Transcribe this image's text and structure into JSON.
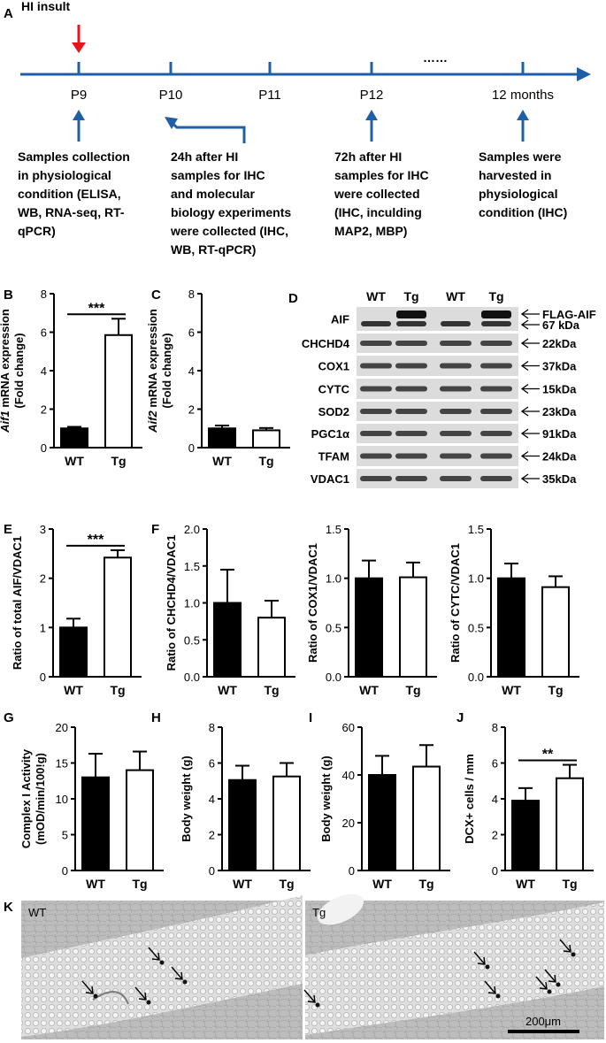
{
  "panel_labels": [
    "A",
    "B",
    "C",
    "D",
    "E",
    "F",
    "G",
    "H",
    "I",
    "J",
    "K"
  ],
  "timeline": {
    "insult_label": "HI insult",
    "ellipsis": "……",
    "ticks": [
      "P9",
      "P10",
      "P11",
      "P12",
      "12 months"
    ],
    "notes": [
      [
        "Samples collection",
        "in physiological",
        "condition (ELISA,",
        "WB, RNA-seq, RT-",
        "qPCR)"
      ],
      [
        "24h after HI",
        "samples for IHC",
        "and molecular",
        "biology experiments",
        "were collected (IHC,",
        "WB, RT-qPCR)"
      ],
      [
        "72h after HI",
        "samples for IHC",
        "were collected",
        "(IHC, inculding",
        "MAP2, MBP)"
      ],
      [
        "Samples were",
        "harvested in",
        "physiological",
        "condition (IHC)"
      ]
    ],
    "colors": {
      "line": "#1f5fa8",
      "insult_arrow": "#e8141b"
    }
  },
  "western_blot": {
    "lanes": [
      "WT",
      "Tg",
      "WT",
      "Tg"
    ],
    "rows": [
      {
        "name": "AIF",
        "markers": [
          "FLAG-AIF",
          "67 kDa"
        ]
      },
      {
        "name": "CHCHD4",
        "markers": [
          "22kDa"
        ]
      },
      {
        "name": "COX1",
        "markers": [
          "37kDa"
        ]
      },
      {
        "name": "CYTC",
        "markers": [
          "15kDa"
        ]
      },
      {
        "name": "SOD2",
        "markers": [
          "23kDa"
        ]
      },
      {
        "name": "PGC1α",
        "markers": [
          "91kDa"
        ]
      },
      {
        "name": "TFAM",
        "markers": [
          "24kDa"
        ]
      },
      {
        "name": "VDAC1",
        "markers": [
          "35kDa"
        ]
      }
    ]
  },
  "chart_data": [
    {
      "panel": "B",
      "type": "bar",
      "categories": [
        "WT",
        "Tg"
      ],
      "values": [
        1.0,
        5.85
      ],
      "errors": [
        0.08,
        0.85
      ],
      "ylabel_italic": "Aif1",
      "ylabel": " mRNA expression",
      "ylabel2": "(Fold change)",
      "ylim": [
        0,
        8
      ],
      "ticks": [
        0,
        2,
        4,
        6,
        8
      ],
      "significance": "***"
    },
    {
      "panel": "C",
      "type": "bar",
      "categories": [
        "WT",
        "Tg"
      ],
      "values": [
        1.0,
        0.9
      ],
      "errors": [
        0.15,
        0.12
      ],
      "ylabel_italic": "Aif2",
      "ylabel": " mRNA expression",
      "ylabel2": "(Fold change)",
      "ylim": [
        0,
        8
      ],
      "ticks": [
        0,
        2,
        4,
        6,
        8
      ],
      "significance": ""
    },
    {
      "panel": "E",
      "type": "bar",
      "categories": [
        "WT",
        "Tg"
      ],
      "values": [
        1.0,
        2.42
      ],
      "errors": [
        0.18,
        0.15
      ],
      "ylabel_italic": "",
      "ylabel": "Ratio of total AIF/VDAC1",
      "ylabel2": "",
      "ylim": [
        0,
        3
      ],
      "ticks": [
        0,
        1,
        2,
        3
      ],
      "significance": "***"
    },
    {
      "panel": "F1",
      "type": "bar",
      "categories": [
        "WT",
        "Tg"
      ],
      "values": [
        1.0,
        0.8
      ],
      "errors": [
        0.45,
        0.23
      ],
      "ylabel_italic": "",
      "ylabel": "Ratio of CHCHD4/VDAC1",
      "ylabel2": "",
      "ylim": [
        0,
        2.0
      ],
      "ticks": [
        "0.0",
        "0.5",
        "1.0",
        "1.5",
        "2.0"
      ],
      "significance": ""
    },
    {
      "panel": "F2",
      "type": "bar",
      "categories": [
        "WT",
        "Tg"
      ],
      "values": [
        1.0,
        1.01
      ],
      "errors": [
        0.18,
        0.15
      ],
      "ylabel_italic": "",
      "ylabel": "Ratio of COX1/VDAC1",
      "ylabel2": "",
      "ylim": [
        0,
        1.5
      ],
      "ticks": [
        "0.0",
        "0.5",
        "1.0",
        "1.5"
      ],
      "significance": ""
    },
    {
      "panel": "F3",
      "type": "bar",
      "categories": [
        "WT",
        "Tg"
      ],
      "values": [
        1.0,
        0.91
      ],
      "errors": [
        0.15,
        0.11
      ],
      "ylabel_italic": "",
      "ylabel": "Ratio of CYTC/VDAC1",
      "ylabel2": "",
      "ylim": [
        0,
        1.5
      ],
      "ticks": [
        "0.0",
        "0.5",
        "1.0",
        "1.5"
      ],
      "significance": ""
    },
    {
      "panel": "G",
      "type": "bar",
      "categories": [
        "WT",
        "Tg"
      ],
      "values": [
        13.0,
        14.0
      ],
      "errors": [
        3.3,
        2.6
      ],
      "ylabel_italic": "",
      "ylabel": "Complex I Activity",
      "ylabel2": "(mOD/min/100!g)",
      "ylim": [
        0,
        20
      ],
      "ticks": [
        0,
        5,
        10,
        15,
        20
      ],
      "significance": ""
    },
    {
      "panel": "H",
      "type": "bar",
      "categories": [
        "WT",
        "Tg"
      ],
      "values": [
        5.05,
        5.25
      ],
      "errors": [
        0.8,
        0.75
      ],
      "ylabel_italic": "",
      "ylabel": "Body weight (g)",
      "ylabel2": "",
      "ylim": [
        0,
        8
      ],
      "ticks": [
        0,
        2,
        4,
        6,
        8
      ],
      "significance": ""
    },
    {
      "panel": "I",
      "type": "bar",
      "categories": [
        "WT",
        "Tg"
      ],
      "values": [
        40.0,
        43.5
      ],
      "errors": [
        8.0,
        9.0
      ],
      "ylabel_italic": "",
      "ylabel": "Body weight (g)",
      "ylabel2": "",
      "ylim": [
        0,
        60
      ],
      "ticks": [
        0,
        20,
        40,
        60
      ],
      "significance": ""
    },
    {
      "panel": "J",
      "type": "bar",
      "categories": [
        "WT",
        "Tg"
      ],
      "values": [
        3.9,
        5.15
      ],
      "errors": [
        0.7,
        0.75
      ],
      "ylabel_italic": "",
      "ylabel": "DCX+ cells / mm",
      "ylabel2": "",
      "ylim": [
        0,
        8
      ],
      "ticks": [
        0,
        2,
        4,
        6,
        8
      ],
      "significance": "**"
    }
  ],
  "micrographs": {
    "left_label": "WT",
    "right_label": "Tg",
    "scale_bar": "200μm"
  }
}
